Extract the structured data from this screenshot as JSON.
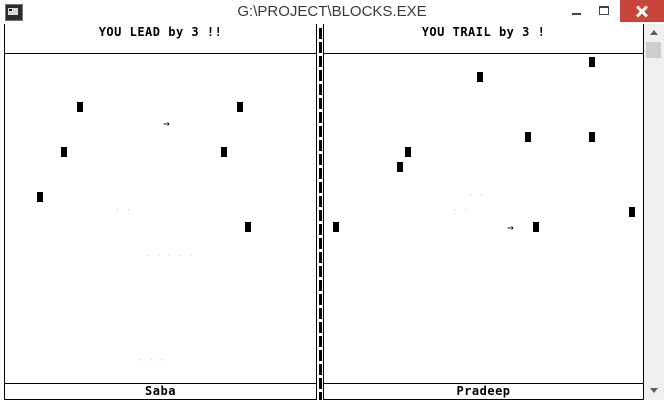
{
  "window": {
    "title": "G:\\PROJECT\\BLOCKS.EXE"
  },
  "game": {
    "left_panel": {
      "message": "YOU LEAD by 3 !!",
      "player_name": "Saba",
      "pointer_glyph": "→"
    },
    "right_panel": {
      "message": "YOU TRAIL by 3 !",
      "player_name": "Pradeep",
      "pointer_glyph": "→"
    }
  }
}
